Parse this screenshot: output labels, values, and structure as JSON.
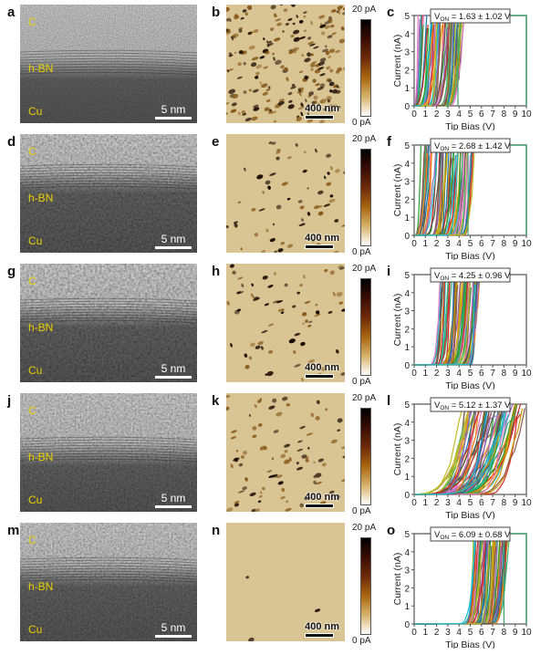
{
  "panels": [
    {
      "tem_label": "a",
      "afm_label": "b",
      "chart_label": "c"
    },
    {
      "tem_label": "d",
      "afm_label": "e",
      "chart_label": "f"
    },
    {
      "tem_label": "g",
      "afm_label": "h",
      "chart_label": "i"
    },
    {
      "tem_label": "j",
      "afm_label": "k",
      "chart_label": "l"
    },
    {
      "tem_label": "m",
      "afm_label": "n",
      "chart_label": "o"
    }
  ],
  "tem": {
    "layer_labels": {
      "top": "C",
      "middle": "h-BN",
      "bottom": "Cu"
    },
    "scale_bar": "5 nm"
  },
  "afm": {
    "scale_bar": "400 nm",
    "colorbar_max": "20 pA",
    "colorbar_min": "0 pA",
    "colormap": [
      "#000000",
      "#3a0d05",
      "#6e2a08",
      "#a8650f",
      "#d6b26a",
      "#ffffff"
    ],
    "background": "#d9c594"
  },
  "chart_data": [
    {
      "type": "line",
      "xlabel": "Tip Bias (V)",
      "ylabel": "Current (nA)",
      "xlim": [
        0,
        10
      ],
      "ylim": [
        0,
        5
      ],
      "xticks": [
        0,
        1,
        2,
        3,
        4,
        5,
        6,
        7,
        8,
        9,
        10
      ],
      "yticks": [
        0,
        1,
        2,
        3,
        4,
        5
      ],
      "annotation": {
        "prefix": "V",
        "sub": "ON",
        "text": " = 1.63 ± 1.02 V"
      },
      "von_mean": 1.63,
      "von_std": 1.02,
      "curve_onset_range": [
        0,
        4
      ]
    },
    {
      "type": "line",
      "xlabel": "Tip Bias (V)",
      "ylabel": "Current (nA)",
      "xlim": [
        0,
        10
      ],
      "ylim": [
        0,
        5
      ],
      "xticks": [
        0,
        1,
        2,
        3,
        4,
        5,
        6,
        7,
        8,
        9,
        10
      ],
      "yticks": [
        0,
        1,
        2,
        3,
        4,
        5
      ],
      "annotation": {
        "prefix": "V",
        "sub": "ON",
        "text": " = 2.68 ± 1.42 V"
      },
      "von_mean": 2.68,
      "von_std": 1.42,
      "curve_onset_range": [
        0,
        5
      ]
    },
    {
      "type": "line",
      "xlabel": "Tip Bias (V)",
      "ylabel": "Current (nA)",
      "xlim": [
        0,
        10
      ],
      "ylim": [
        0,
        5
      ],
      "xticks": [
        0,
        1,
        2,
        3,
        4,
        5,
        6,
        7,
        8,
        9,
        10
      ],
      "yticks": [
        0,
        1,
        2,
        3,
        4,
        5
      ],
      "annotation": {
        "prefix": "V",
        "sub": "ON",
        "text": " = 4.25 ± 0.96 V"
      },
      "von_mean": 4.25,
      "von_std": 0.96,
      "curve_onset_range": [
        2,
        5.5
      ]
    },
    {
      "type": "line",
      "xlabel": "Tip Bias (V)",
      "ylabel": "Current (nA)",
      "xlim": [
        0,
        10
      ],
      "ylim": [
        0,
        5
      ],
      "xticks": [
        0,
        1,
        2,
        3,
        4,
        5,
        6,
        7,
        8,
        9,
        10
      ],
      "yticks": [
        0,
        1,
        2,
        3,
        4,
        5
      ],
      "annotation": {
        "prefix": "V",
        "sub": "ON",
        "text": " = 5.12 ± 1.37 V"
      },
      "von_mean": 5.12,
      "von_std": 1.37,
      "curve_onset_range": [
        3,
        8.5
      ]
    },
    {
      "type": "line",
      "xlabel": "Tip Bias (V)",
      "ylabel": "Current (nA)",
      "xlim": [
        0,
        10
      ],
      "ylim": [
        0,
        5
      ],
      "xticks": [
        0,
        1,
        2,
        3,
        4,
        5,
        6,
        7,
        8,
        9,
        10
      ],
      "yticks": [
        0,
        1,
        2,
        3,
        4,
        5
      ],
      "annotation": {
        "prefix": "V",
        "sub": "ON",
        "text": " = 6.09 ± 0.68 V"
      },
      "von_mean": 6.09,
      "von_std": 0.68,
      "curve_onset_range": [
        5,
        8
      ]
    }
  ],
  "curve_colors": [
    "#1f77b4",
    "#ff7f0e",
    "#2ca02c",
    "#d62728",
    "#9467bd",
    "#8c564b",
    "#e377c2",
    "#555555",
    "#bcbd22",
    "#17becf",
    "#c49a00",
    "#3cb371"
  ]
}
